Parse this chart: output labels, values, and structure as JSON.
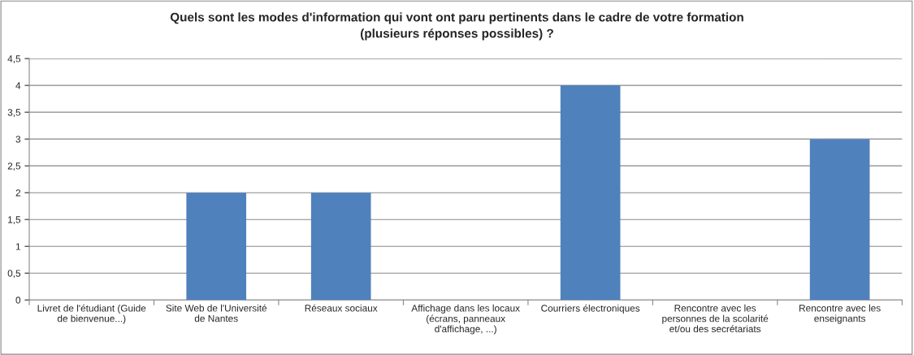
{
  "chart_data": {
    "type": "bar",
    "title": "Quels sont les modes d'information qui vont ont paru pertinents dans le cadre de votre formation\n(plusieurs réponses possibles) ?",
    "categories": [
      "Livret de l'étudiant (Guide\nde bienvenue...)",
      "Site Web de l'Université\nde Nantes",
      "Réseaux sociaux",
      "Affichage dans les locaux\n(écrans, panneaux\nd'affichage, ...)",
      "Courriers électroniques",
      "Rencontre avec les\npersonnes de la scolarité\net/ou des secrétariats",
      "Rencontre avec les\nenseignants"
    ],
    "values": [
      0,
      2,
      2,
      0,
      4,
      0,
      3
    ],
    "color": "#4f81bd",
    "ylim": [
      0,
      4.5
    ],
    "yticks": [
      0,
      {
        "value": 0.5,
        "label": "0,5"
      },
      1,
      {
        "value": 1.5,
        "label": "1,5"
      },
      2,
      {
        "value": 2.5,
        "label": "2,5"
      },
      3,
      {
        "value": 3.5,
        "label": "3,5"
      },
      4,
      {
        "value": 4.5,
        "label": "4,5"
      }
    ],
    "grid": "y"
  }
}
